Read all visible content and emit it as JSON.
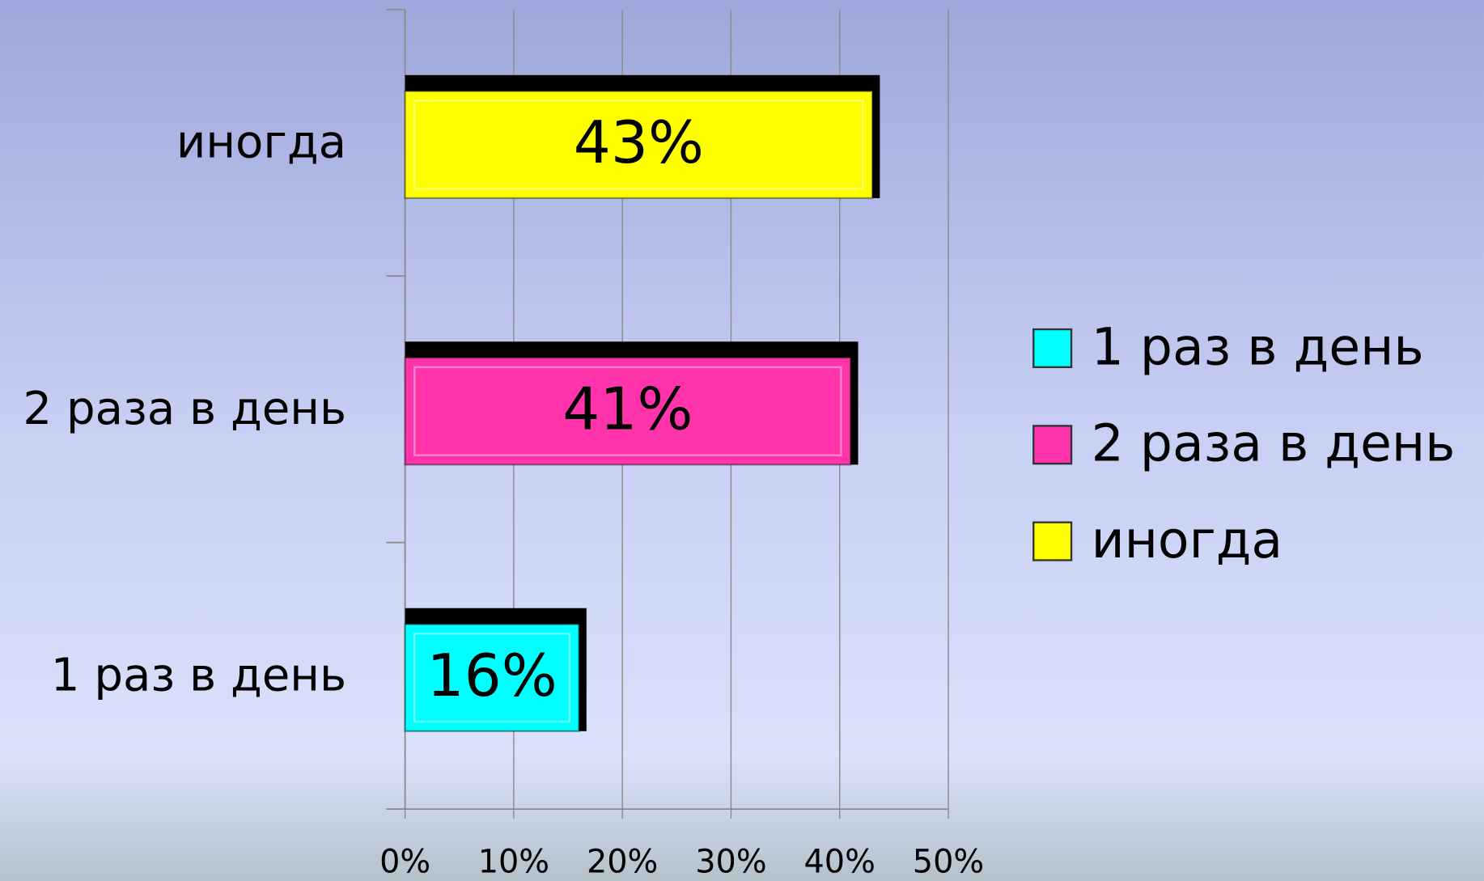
{
  "chart_data": {
    "type": "bar",
    "orientation": "horizontal",
    "categories": [
      "1 раз в день",
      "2 раза в день",
      "иногда"
    ],
    "values": [
      16,
      41,
      43
    ],
    "value_labels": [
      "16%",
      "41%",
      "43%"
    ],
    "colors": [
      "#00ffff",
      "#ff33aa",
      "#ffff00"
    ],
    "xlim": [
      0,
      50
    ],
    "xticks": [
      {
        "value": 0,
        "label": "0%"
      },
      {
        "value": 10,
        "label": "10%"
      },
      {
        "value": 20,
        "label": "20%"
      },
      {
        "value": 30,
        "label": "30%"
      },
      {
        "value": 40,
        "label": "40%"
      },
      {
        "value": 50,
        "label": "50%"
      }
    ],
    "grid": true,
    "legend": "right"
  }
}
